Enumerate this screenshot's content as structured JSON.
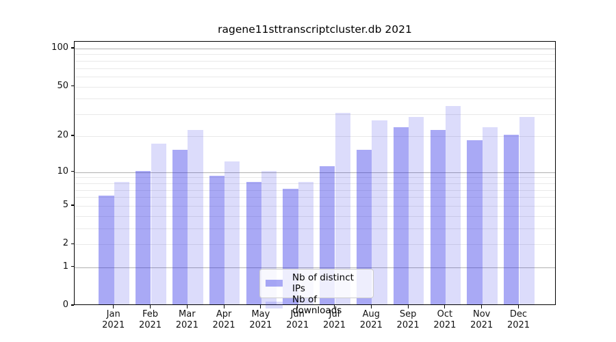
{
  "title": "ragene11sttranscriptcluster.db 2021",
  "colors": {
    "ips_bar": "rgba(40,40,230,0.40)",
    "downloads_bar": "rgba(40,40,230,0.16)",
    "grid_major": "#b0b0b0",
    "grid_minor": "#e9e9e9",
    "axis": "#000000"
  },
  "legend": {
    "items": [
      {
        "label": "Nb of distinct IPs",
        "series": "ips"
      },
      {
        "label": "Nb of downloads",
        "series": "downloads"
      }
    ]
  },
  "chart_data": {
    "type": "bar",
    "title": "ragene11sttranscriptcluster.db 2021",
    "categories": [
      "Jan 2021",
      "Feb 2021",
      "Mar 2021",
      "Apr 2021",
      "May 2021",
      "Jun 2021",
      "Jul 2021",
      "Aug 2021",
      "Sep 2021",
      "Oct 2021",
      "Nov 2021",
      "Dec 2021"
    ],
    "series": [
      {
        "name": "Nb of distinct IPs",
        "values": [
          6,
          10,
          15,
          9,
          8,
          7,
          11,
          15,
          23,
          22,
          18,
          20
        ]
      },
      {
        "name": "Nb of downloads",
        "values": [
          8,
          17,
          22,
          12,
          10,
          8,
          30,
          26,
          28,
          34,
          23,
          28
        ]
      }
    ],
    "xlabel": "",
    "ylabel": "",
    "y_scale": "log10(1+y)",
    "ylim": [
      0,
      113
    ],
    "y_ticks": [
      0,
      1,
      2,
      5,
      10,
      20,
      50,
      100
    ],
    "y_major_gridlines": [
      1,
      10,
      100
    ],
    "y_minor_gridlines": [
      2,
      3,
      4,
      5,
      6,
      7,
      8,
      9,
      20,
      30,
      40,
      50,
      60,
      70,
      80,
      90
    ],
    "grid": "on",
    "legend_position": "lower center"
  }
}
